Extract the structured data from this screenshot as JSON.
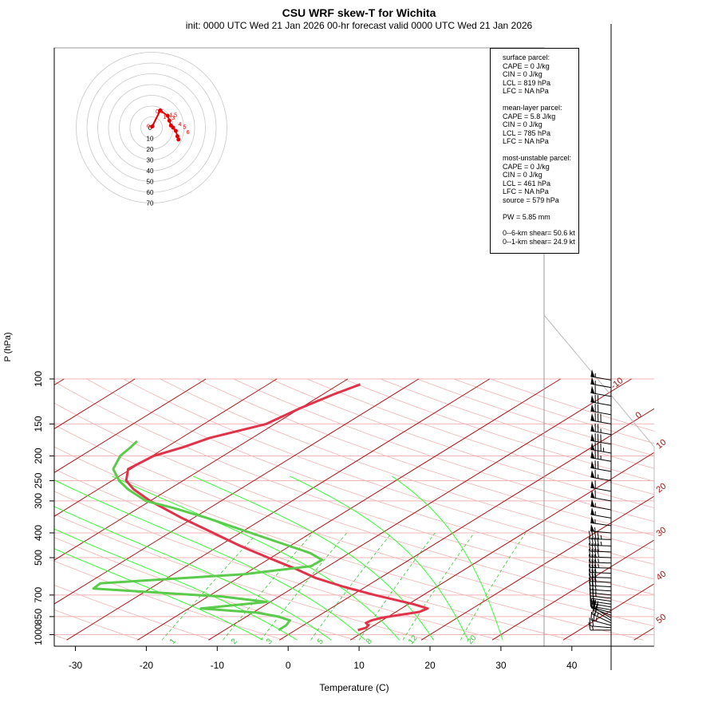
{
  "title": "CSU WRF skew-T for Wichita",
  "subtitle": "init: 0000 UTC Wed 21 Jan 2026     00-hr forecast valid 0000 UTC Wed 21 Jan 2026",
  "info": {
    "surface": {
      "header": "surface parcel:",
      "cape": "CAPE = 0 J/kg",
      "cin": "CIN = 0 J/kg",
      "lcl": "LCL = 819 hPa",
      "lfc": "LFC = NA hPa"
    },
    "mean_layer": {
      "header": "mean-layer parcel:",
      "cape": "CAPE = 5.8 J/kg",
      "cin": "CIN = 0 J/kg",
      "lcl": "LCL = 785 hPa",
      "lfc": "LFC = NA hPa"
    },
    "most_unstable": {
      "header": "most-unstable parcel:",
      "cape": "CAPE = 0 J/kg",
      "cin": "CIN = 0 J/kg",
      "lcl": "LCL = 461 hPa",
      "lfc": "LFC = NA hPa",
      "source": "source = 579 hPa"
    },
    "pw": "PW =  5.85 mm",
    "shear6": "0--6-km shear= 50.6 kt",
    "shear1": "0--1-km shear= 24.9 kt"
  },
  "colors": {
    "temperature": "#e0334a",
    "dewpoint": "#5acb4a",
    "isotherm": "#a81818",
    "isobar": "#f0b4b4",
    "dry_adiabat": "#f2b2b2",
    "moist_adiabat": "#33ff33",
    "mixing_ratio": "#33cc33",
    "hodograph": "#e00000",
    "hodo_ring": "#c8c8c8"
  },
  "chart_data": {
    "type": "skew-t",
    "xlabel": "Temperature (C)",
    "ylabel": "P (hPa)",
    "xlim": [
      -33,
      50
    ],
    "ylim": [
      1050,
      100
    ],
    "x_ticks": [
      -30,
      -20,
      -10,
      0,
      10,
      20,
      30,
      40
    ],
    "p_ticks": [
      1000,
      850,
      700,
      500,
      400,
      300,
      250,
      200,
      150,
      100
    ],
    "isotherm_labels": [
      {
        "t": -10,
        "label": "-10"
      },
      {
        "t": 0,
        "label": "0"
      },
      {
        "t": 10,
        "label": "10"
      },
      {
        "t": 20,
        "label": "20"
      },
      {
        "t": 30,
        "label": "30"
      },
      {
        "t": 40,
        "label": "40"
      },
      {
        "t": 50,
        "label": "50"
      }
    ],
    "mixing_ratio_labels": [
      "1",
      "2",
      "3",
      "5",
      "8",
      "12",
      "20"
    ],
    "temperature_profile": [
      {
        "p": 960,
        "t": 8.8
      },
      {
        "p": 940,
        "t": 9.4
      },
      {
        "p": 920,
        "t": 9.2
      },
      {
        "p": 900,
        "t": 8.3
      },
      {
        "p": 880,
        "t": 8.5
      },
      {
        "p": 860,
        "t": 9.3
      },
      {
        "p": 840,
        "t": 11.0
      },
      {
        "p": 815,
        "t": 13.3
      },
      {
        "p": 790,
        "t": 13.7
      },
      {
        "p": 760,
        "t": 10.7
      },
      {
        "p": 700,
        "t": 3.2
      },
      {
        "p": 650,
        "t": -3.1
      },
      {
        "p": 600,
        "t": -9.1
      },
      {
        "p": 550,
        "t": -14.3
      },
      {
        "p": 500,
        "t": -20.4
      },
      {
        "p": 450,
        "t": -27.0
      },
      {
        "p": 400,
        "t": -33.8
      },
      {
        "p": 350,
        "t": -41.6
      },
      {
        "p": 300,
        "t": -50.0
      },
      {
        "p": 270,
        "t": -55.0
      },
      {
        "p": 250,
        "t": -58.0
      },
      {
        "p": 225,
        "t": -60.4
      },
      {
        "p": 200,
        "t": -59.8
      },
      {
        "p": 185,
        "t": -57.6
      },
      {
        "p": 170,
        "t": -56.0
      },
      {
        "p": 150,
        "t": -51.2
      },
      {
        "p": 130,
        "t": -50.0
      },
      {
        "p": 115,
        "t": -48.5
      },
      {
        "p": 105,
        "t": -47.0
      }
    ],
    "dewpoint_profile": [
      {
        "p": 960,
        "t": -2.4
      },
      {
        "p": 920,
        "t": -2.4
      },
      {
        "p": 880,
        "t": -3.0
      },
      {
        "p": 850,
        "t": -5.5
      },
      {
        "p": 820,
        "t": -9.5
      },
      {
        "p": 790,
        "t": -18.3
      },
      {
        "p": 745,
        "t": -10.5
      },
      {
        "p": 710,
        "t": -18.0
      },
      {
        "p": 660,
        "t": -38.0
      },
      {
        "p": 630,
        "t": -38.2
      },
      {
        "p": 580,
        "t": -20.0
      },
      {
        "p": 540,
        "t": -12.4
      },
      {
        "p": 510,
        "t": -12.3
      },
      {
        "p": 480,
        "t": -15.5
      },
      {
        "p": 400,
        "t": -28.5
      },
      {
        "p": 350,
        "t": -38.0
      },
      {
        "p": 320,
        "t": -45.0
      },
      {
        "p": 300,
        "t": -50.6
      },
      {
        "p": 270,
        "t": -55.8
      },
      {
        "p": 250,
        "t": -59.0
      },
      {
        "p": 225,
        "t": -62.5
      },
      {
        "p": 200,
        "t": -64.5
      },
      {
        "p": 185,
        "t": -65.0
      },
      {
        "p": 175,
        "t": -65.5
      }
    ],
    "wind_profile": [
      {
        "p": 960,
        "dir": 270,
        "spd": 15
      },
      {
        "p": 940,
        "dir": 275,
        "spd": 20
      },
      {
        "p": 920,
        "dir": 285,
        "spd": 25
      },
      {
        "p": 900,
        "dir": 295,
        "spd": 25
      },
      {
        "p": 880,
        "dir": 300,
        "spd": 20
      },
      {
        "p": 860,
        "dir": 300,
        "spd": 20
      },
      {
        "p": 840,
        "dir": 290,
        "spd": 20
      },
      {
        "p": 820,
        "dir": 285,
        "spd": 20
      },
      {
        "p": 800,
        "dir": 280,
        "spd": 20
      },
      {
        "p": 780,
        "dir": 280,
        "spd": 20
      },
      {
        "p": 760,
        "dir": 278,
        "spd": 20
      },
      {
        "p": 740,
        "dir": 278,
        "spd": 20
      },
      {
        "p": 720,
        "dir": 276,
        "spd": 25
      },
      {
        "p": 700,
        "dir": 276,
        "spd": 25
      },
      {
        "p": 675,
        "dir": 274,
        "spd": 25
      },
      {
        "p": 650,
        "dir": 273,
        "spd": 30
      },
      {
        "p": 625,
        "dir": 273,
        "spd": 30
      },
      {
        "p": 600,
        "dir": 272,
        "spd": 30
      },
      {
        "p": 575,
        "dir": 272,
        "spd": 30
      },
      {
        "p": 550,
        "dir": 272,
        "spd": 35
      },
      {
        "p": 525,
        "dir": 272,
        "spd": 35
      },
      {
        "p": 500,
        "dir": 272,
        "spd": 40
      },
      {
        "p": 475,
        "dir": 272,
        "spd": 40
      },
      {
        "p": 450,
        "dir": 272,
        "spd": 45
      },
      {
        "p": 425,
        "dir": 272,
        "spd": 45
      },
      {
        "p": 400,
        "dir": 275,
        "spd": 55
      },
      {
        "p": 375,
        "dir": 278,
        "spd": 55
      },
      {
        "p": 350,
        "dir": 280,
        "spd": 55
      },
      {
        "p": 325,
        "dir": 280,
        "spd": 55
      },
      {
        "p": 300,
        "dir": 280,
        "spd": 60
      },
      {
        "p": 275,
        "dir": 280,
        "spd": 60
      },
      {
        "p": 250,
        "dir": 280,
        "spd": 65
      },
      {
        "p": 230,
        "dir": 280,
        "spd": 70
      },
      {
        "p": 210,
        "dir": 280,
        "spd": 75
      },
      {
        "p": 195,
        "dir": 280,
        "spd": 85
      },
      {
        "p": 180,
        "dir": 280,
        "spd": 80
      },
      {
        "p": 165,
        "dir": 280,
        "spd": 75
      },
      {
        "p": 150,
        "dir": 280,
        "spd": 80
      },
      {
        "p": 138,
        "dir": 280,
        "spd": 70
      },
      {
        "p": 127,
        "dir": 280,
        "spd": 70
      },
      {
        "p": 117,
        "dir": 280,
        "spd": 60
      },
      {
        "p": 108,
        "dir": 280,
        "spd": 55
      },
      {
        "p": 101,
        "dir": 280,
        "spd": 55
      }
    ],
    "hodograph": {
      "ring_labels": [
        "0",
        "10",
        "20",
        "30",
        "40",
        "50",
        "60",
        "70"
      ],
      "height_labels": [
        "0.5",
        "0.0",
        "1",
        "1.5",
        "3",
        "4",
        "5",
        "6"
      ],
      "points": [
        {
          "u": 0.5,
          "v": 1.0
        },
        {
          "u": 8.0,
          "v": 16.0
        },
        {
          "u": 15.0,
          "v": 11.0
        },
        {
          "u": 16.5,
          "v": 6.5
        },
        {
          "u": 18.0,
          "v": 2.0
        },
        {
          "u": 20.0,
          "v": 0.0
        },
        {
          "u": 22.5,
          "v": -3.0
        },
        {
          "u": 24.0,
          "v": -8.0
        },
        {
          "u": 25.0,
          "v": -11.0
        }
      ]
    }
  }
}
